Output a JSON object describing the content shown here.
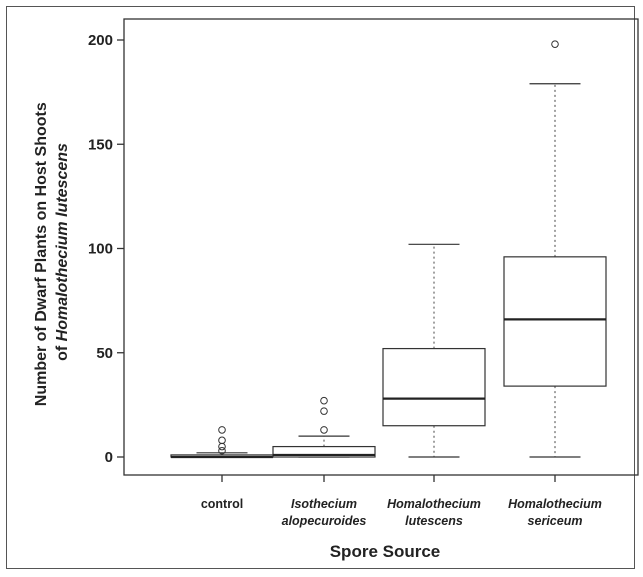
{
  "chart_data": {
    "type": "box",
    "title": "",
    "xlabel": "Spore Source",
    "ylabel": {
      "line1": "Number of Dwarf Plants on Host Shoots",
      "line2_prefix": "of ",
      "line2_italic": "Homalothecium lutescens"
    },
    "ylim": [
      0,
      210
    ],
    "yticks": [
      0,
      50,
      100,
      150,
      200
    ],
    "grid": false,
    "categories": [
      {
        "lines": [
          "control"
        ],
        "italic": false
      },
      {
        "lines": [
          "Isothecium",
          "alopecuroides"
        ],
        "italic": true
      },
      {
        "lines": [
          "Homalothecium",
          "lutescens"
        ],
        "italic": true
      },
      {
        "lines": [
          "Homalothecium",
          "sericeum"
        ],
        "italic": true
      }
    ],
    "boxes": [
      {
        "whisker_low": 0,
        "q1": 0,
        "median": 0,
        "q3": 1,
        "whisker_high": 2,
        "outliers": [
          3,
          5,
          8,
          13
        ]
      },
      {
        "whisker_low": 0,
        "q1": 0,
        "median": 1,
        "q3": 5,
        "whisker_high": 10,
        "outliers": [
          13,
          22,
          27
        ]
      },
      {
        "whisker_low": 0,
        "q1": 15,
        "median": 28,
        "q3": 52,
        "whisker_high": 102,
        "outliers": []
      },
      {
        "whisker_low": 0,
        "q1": 34,
        "median": 66,
        "q3": 96,
        "whisker_high": 179,
        "outliers": [
          198
        ]
      }
    ]
  }
}
